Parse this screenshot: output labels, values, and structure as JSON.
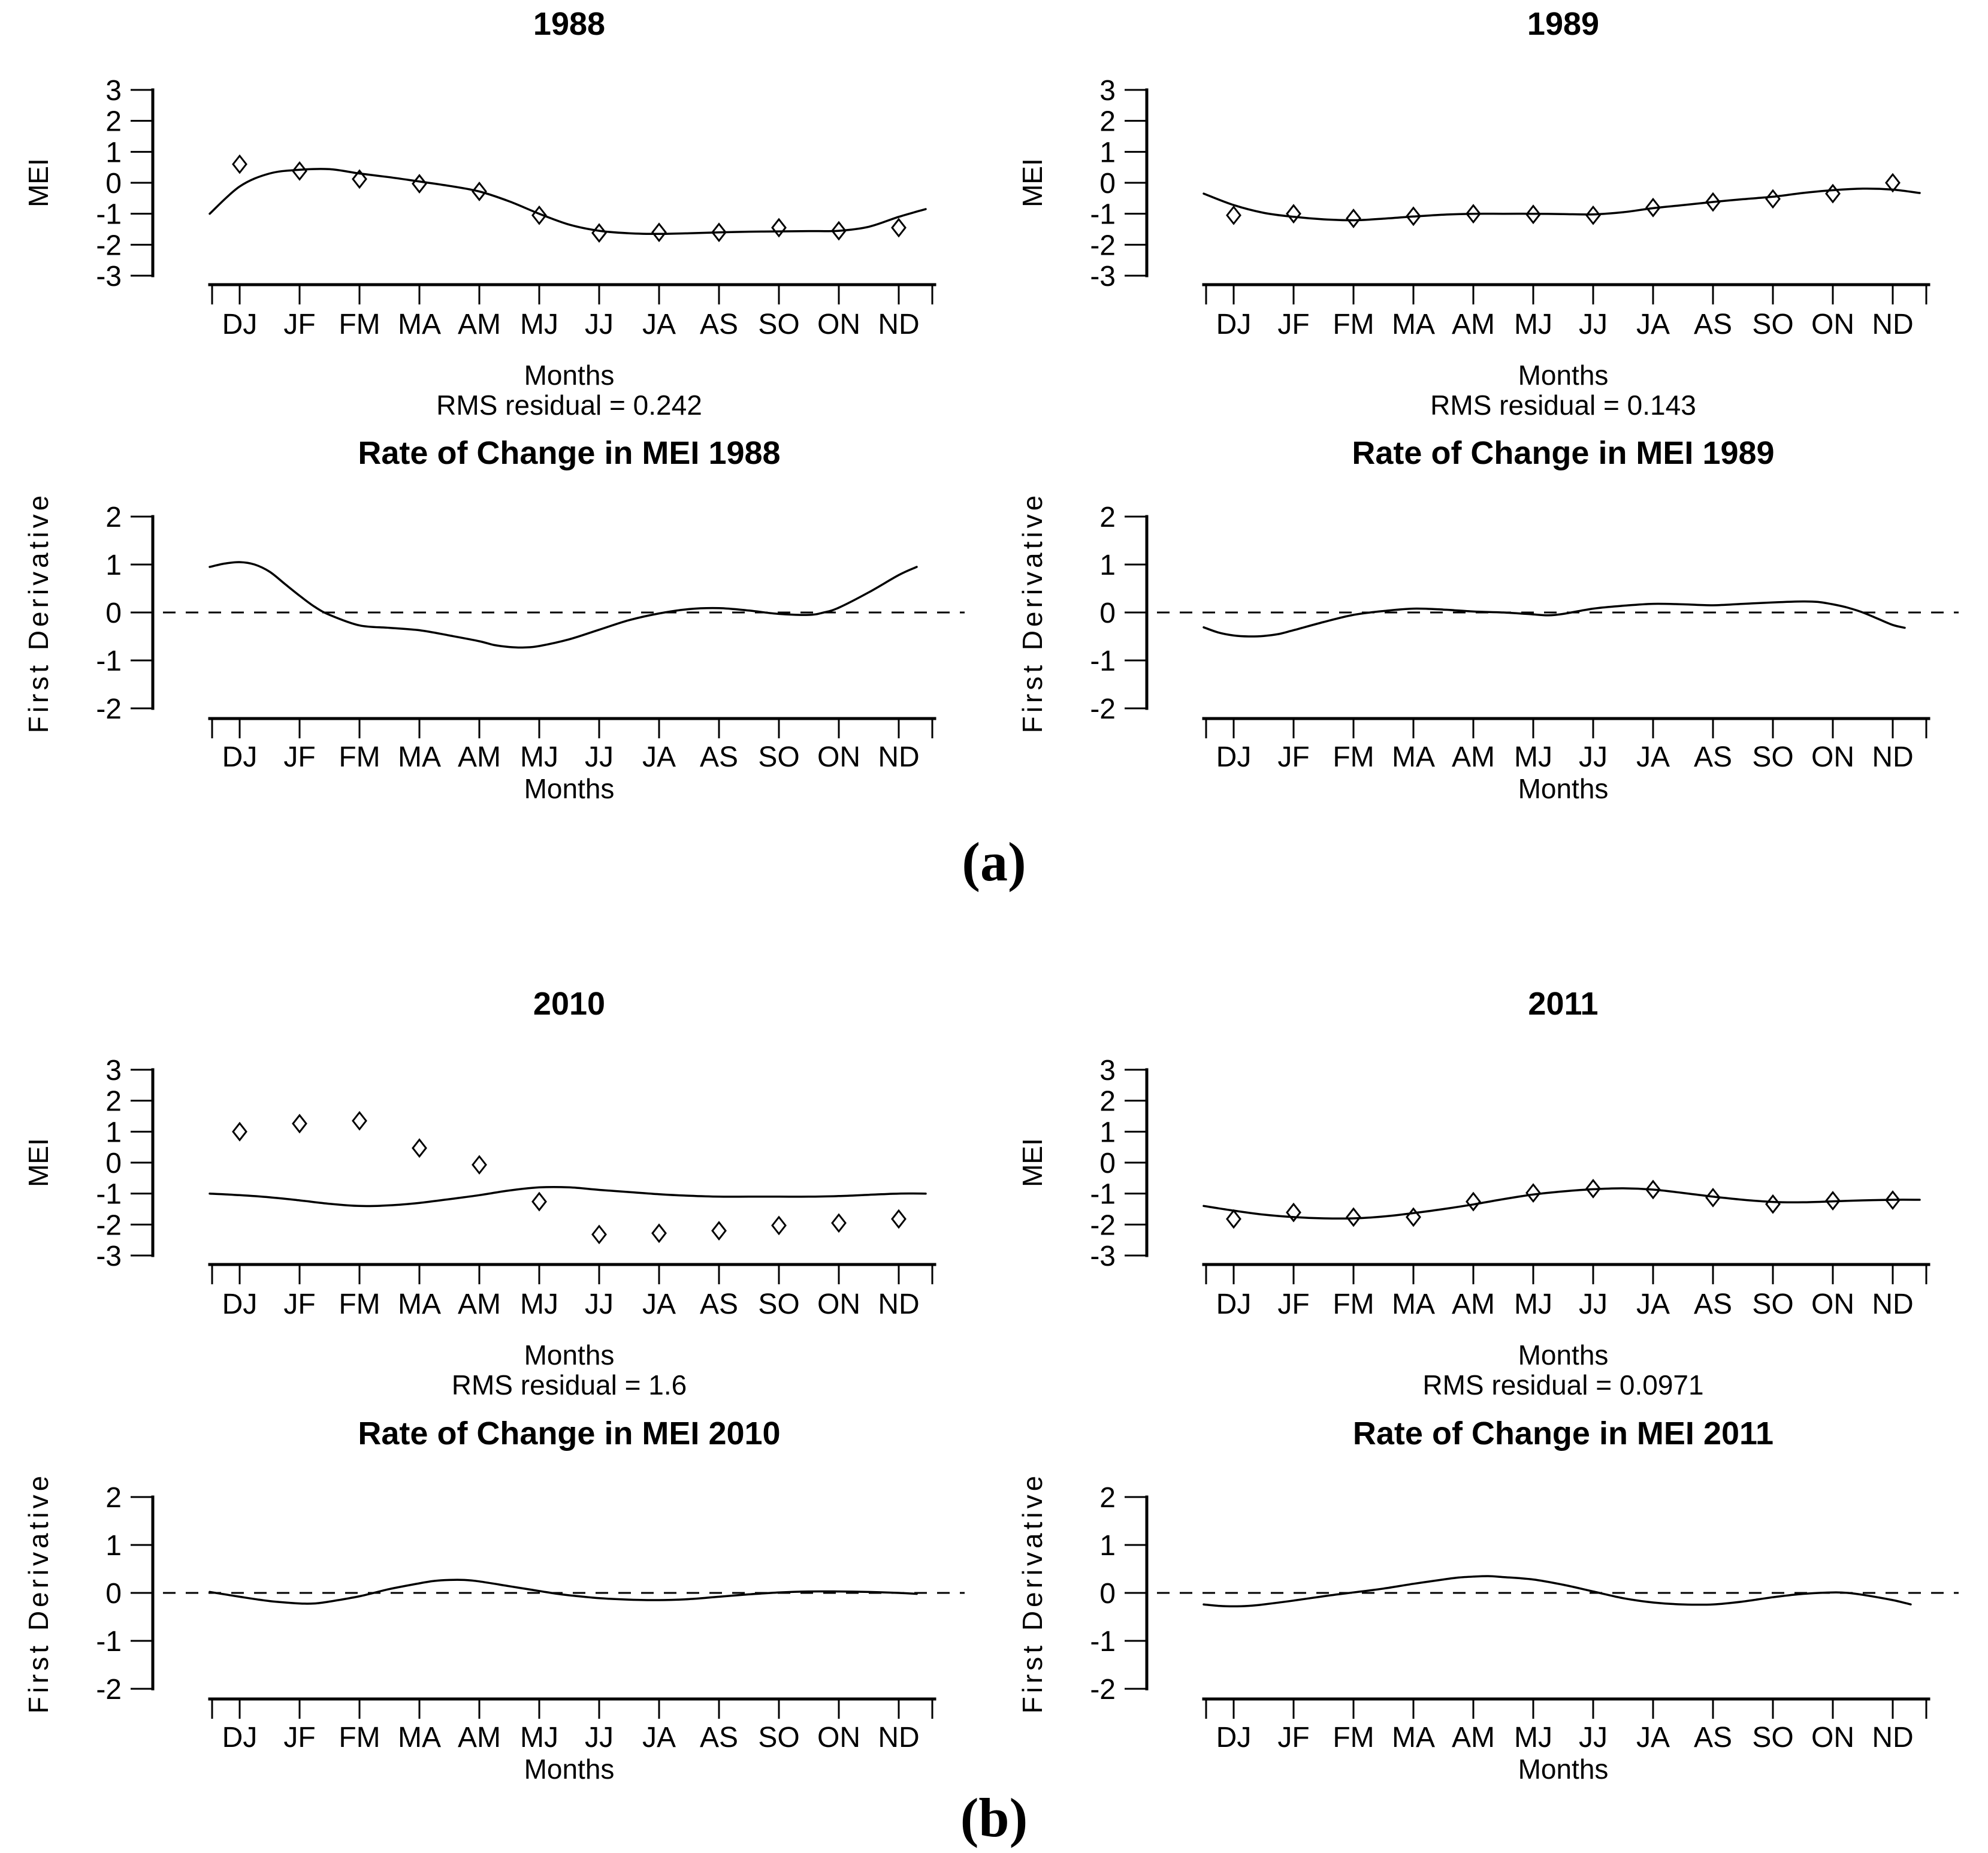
{
  "figure": {
    "panel_a_label": "(a)",
    "panel_b_label": "(b)"
  },
  "chart_data": [
    {
      "id": "mei-1988",
      "type": "scatter",
      "panel": "a",
      "title": "1988",
      "xlabel": "Months",
      "ylabel": "MEI",
      "subtitle": "RMS residual = 0.242",
      "ylim": [
        -3,
        3
      ],
      "yticks": [
        3,
        2,
        1,
        0,
        -1,
        -2,
        -3
      ],
      "categories": [
        "DJ",
        "JF",
        "FM",
        "MA",
        "AM",
        "MJ",
        "JJ",
        "JA",
        "AS",
        "SO",
        "ON",
        "ND"
      ],
      "points": [
        0.6,
        0.38,
        0.12,
        -0.03,
        -0.28,
        -1.05,
        -1.62,
        -1.6,
        -1.6,
        -1.45,
        -1.55,
        -1.45
      ],
      "curve": [
        [
          0.5,
          -1.0
        ],
        [
          1,
          -0.12
        ],
        [
          1.5,
          0.3
        ],
        [
          2,
          0.42
        ],
        [
          2.5,
          0.44
        ],
        [
          3,
          0.3
        ],
        [
          3.5,
          0.18
        ],
        [
          4,
          0.04
        ],
        [
          4.5,
          -0.1
        ],
        [
          5,
          -0.28
        ],
        [
          5.5,
          -0.6
        ],
        [
          6,
          -1.0
        ],
        [
          6.5,
          -1.35
        ],
        [
          7,
          -1.55
        ],
        [
          7.5,
          -1.63
        ],
        [
          8,
          -1.65
        ],
        [
          8.5,
          -1.63
        ],
        [
          9,
          -1.6
        ],
        [
          9.5,
          -1.58
        ],
        [
          10,
          -1.57
        ],
        [
          10.5,
          -1.56
        ],
        [
          11,
          -1.55
        ],
        [
          11.5,
          -1.42
        ],
        [
          12,
          -1.1
        ],
        [
          12.45,
          -0.85
        ]
      ],
      "zero_line": false
    },
    {
      "id": "mei-1989",
      "type": "scatter",
      "panel": "a",
      "title": "1989",
      "xlabel": "Months",
      "ylabel": "MEI",
      "subtitle": "RMS residual = 0.143",
      "ylim": [
        -3,
        3
      ],
      "yticks": [
        3,
        2,
        1,
        0,
        -1,
        -2,
        -3
      ],
      "categories": [
        "DJ",
        "JF",
        "FM",
        "MA",
        "AM",
        "MJ",
        "JJ",
        "JA",
        "AS",
        "SO",
        "ON",
        "ND"
      ],
      "points": [
        -1.05,
        -1.0,
        -1.15,
        -1.08,
        -1.0,
        -1.02,
        -1.05,
        -0.8,
        -0.62,
        -0.52,
        -0.35,
        0.0
      ],
      "curve": [
        [
          0.5,
          -0.35
        ],
        [
          1,
          -0.72
        ],
        [
          1.5,
          -0.97
        ],
        [
          2,
          -1.1
        ],
        [
          2.5,
          -1.18
        ],
        [
          3,
          -1.21
        ],
        [
          3.5,
          -1.16
        ],
        [
          4,
          -1.09
        ],
        [
          4.5,
          -1.03
        ],
        [
          5,
          -1.0
        ],
        [
          5.5,
          -1.0
        ],
        [
          6,
          -1.0
        ],
        [
          6.5,
          -1.01
        ],
        [
          7,
          -1.02
        ],
        [
          7.5,
          -0.95
        ],
        [
          8,
          -0.82
        ],
        [
          8.5,
          -0.72
        ],
        [
          9,
          -0.62
        ],
        [
          9.5,
          -0.53
        ],
        [
          10,
          -0.45
        ],
        [
          10.5,
          -0.33
        ],
        [
          11,
          -0.24
        ],
        [
          11.5,
          -0.19
        ],
        [
          12,
          -0.22
        ],
        [
          12.45,
          -0.33
        ]
      ],
      "zero_line": false
    },
    {
      "id": "roc-1988",
      "type": "line",
      "panel": "a",
      "title": "Rate of Change in MEI 1988",
      "xlabel": "Months",
      "ylabel": "First Derivative",
      "ylim": [
        -2,
        2
      ],
      "yticks": [
        2,
        1,
        0,
        -1,
        -2
      ],
      "categories": [
        "DJ",
        "JF",
        "FM",
        "MA",
        "AM",
        "MJ",
        "JJ",
        "JA",
        "AS",
        "SO",
        "ON",
        "ND"
      ],
      "curve": [
        [
          0.5,
          0.95
        ],
        [
          0.75,
          1.02
        ],
        [
          1,
          1.05
        ],
        [
          1.25,
          1.0
        ],
        [
          1.5,
          0.85
        ],
        [
          1.75,
          0.6
        ],
        [
          2,
          0.35
        ],
        [
          2.25,
          0.12
        ],
        [
          2.5,
          -0.05
        ],
        [
          3,
          -0.27
        ],
        [
          3.5,
          -0.32
        ],
        [
          4,
          -0.37
        ],
        [
          4.5,
          -0.48
        ],
        [
          5,
          -0.6
        ],
        [
          5.25,
          -0.68
        ],
        [
          5.5,
          -0.72
        ],
        [
          5.75,
          -0.73
        ],
        [
          6,
          -0.7
        ],
        [
          6.5,
          -0.56
        ],
        [
          7,
          -0.36
        ],
        [
          7.5,
          -0.16
        ],
        [
          8,
          -0.02
        ],
        [
          8.5,
          0.07
        ],
        [
          9,
          0.09
        ],
        [
          9.5,
          0.04
        ],
        [
          10,
          -0.03
        ],
        [
          10.5,
          -0.05
        ],
        [
          10.75,
          0.0
        ],
        [
          11,
          0.1
        ],
        [
          11.5,
          0.42
        ],
        [
          12,
          0.78
        ],
        [
          12.3,
          0.95
        ]
      ],
      "zero_line": true
    },
    {
      "id": "roc-1989",
      "type": "line",
      "panel": "a",
      "title": "Rate of Change in MEI 1989",
      "xlabel": "Months",
      "ylabel": "First Derivative",
      "ylim": [
        -2,
        2
      ],
      "yticks": [
        2,
        1,
        0,
        -1,
        -2
      ],
      "categories": [
        "DJ",
        "JF",
        "FM",
        "MA",
        "AM",
        "MJ",
        "JJ",
        "JA",
        "AS",
        "SO",
        "ON",
        "ND"
      ],
      "curve": [
        [
          0.5,
          -0.31
        ],
        [
          0.75,
          -0.42
        ],
        [
          1,
          -0.48
        ],
        [
          1.25,
          -0.5
        ],
        [
          1.5,
          -0.49
        ],
        [
          1.75,
          -0.45
        ],
        [
          2,
          -0.37
        ],
        [
          2.5,
          -0.2
        ],
        [
          3,
          -0.05
        ],
        [
          3.5,
          0.03
        ],
        [
          4,
          0.08
        ],
        [
          4.5,
          0.06
        ],
        [
          5,
          0.02
        ],
        [
          5.5,
          0.0
        ],
        [
          6,
          -0.04
        ],
        [
          6.25,
          -0.06
        ],
        [
          6.5,
          -0.03
        ],
        [
          7,
          0.08
        ],
        [
          7.5,
          0.14
        ],
        [
          8,
          0.18
        ],
        [
          8.5,
          0.17
        ],
        [
          9,
          0.15
        ],
        [
          9.5,
          0.18
        ],
        [
          10,
          0.21
        ],
        [
          10.5,
          0.23
        ],
        [
          10.75,
          0.22
        ],
        [
          11,
          0.17
        ],
        [
          11.25,
          0.1
        ],
        [
          11.5,
          0.0
        ],
        [
          11.75,
          -0.13
        ],
        [
          12,
          -0.26
        ],
        [
          12.2,
          -0.32
        ]
      ],
      "zero_line": true
    },
    {
      "id": "mei-2010",
      "type": "scatter",
      "panel": "b",
      "title": "2010",
      "xlabel": "Months",
      "ylabel": "MEI",
      "subtitle": "RMS residual = 1.6",
      "ylim": [
        -3,
        3
      ],
      "yticks": [
        3,
        2,
        1,
        0,
        -1,
        -2,
        -3
      ],
      "categories": [
        "DJ",
        "JF",
        "FM",
        "MA",
        "AM",
        "MJ",
        "JJ",
        "JA",
        "AS",
        "SO",
        "ON",
        "ND"
      ],
      "points": [
        1.0,
        1.26,
        1.35,
        0.47,
        -0.07,
        -1.26,
        -2.32,
        -2.28,
        -2.2,
        -2.03,
        -1.95,
        -1.82
      ],
      "curve": [
        [
          0.5,
          -1.0
        ],
        [
          1,
          -1.05
        ],
        [
          1.5,
          -1.12
        ],
        [
          2,
          -1.22
        ],
        [
          2.5,
          -1.33
        ],
        [
          3,
          -1.4
        ],
        [
          3.5,
          -1.38
        ],
        [
          4,
          -1.3
        ],
        [
          4.5,
          -1.18
        ],
        [
          5,
          -1.05
        ],
        [
          5.5,
          -0.9
        ],
        [
          6,
          -0.8
        ],
        [
          6.5,
          -0.8
        ],
        [
          7,
          -0.88
        ],
        [
          7.5,
          -0.95
        ],
        [
          8,
          -1.02
        ],
        [
          8.5,
          -1.07
        ],
        [
          9,
          -1.1
        ],
        [
          9.5,
          -1.1
        ],
        [
          10,
          -1.1
        ],
        [
          10.5,
          -1.1
        ],
        [
          11,
          -1.08
        ],
        [
          11.5,
          -1.04
        ],
        [
          12,
          -1.0
        ],
        [
          12.45,
          -1.0
        ]
      ],
      "zero_line": false
    },
    {
      "id": "mei-2011",
      "type": "scatter",
      "panel": "b",
      "title": "2011",
      "xlabel": "Months",
      "ylabel": "MEI",
      "subtitle": "RMS residual = 0.0971",
      "ylim": [
        -3,
        3
      ],
      "yticks": [
        3,
        2,
        1,
        0,
        -1,
        -2,
        -3
      ],
      "categories": [
        "DJ",
        "JF",
        "FM",
        "MA",
        "AM",
        "MJ",
        "JJ",
        "JA",
        "AS",
        "SO",
        "ON",
        "ND"
      ],
      "points": [
        -1.82,
        -1.61,
        -1.76,
        -1.76,
        -1.26,
        -0.98,
        -0.84,
        -0.87,
        -1.13,
        -1.34,
        -1.23,
        -1.21
      ],
      "curve": [
        [
          0.5,
          -1.4
        ],
        [
          1,
          -1.55
        ],
        [
          1.5,
          -1.68
        ],
        [
          2,
          -1.76
        ],
        [
          2.5,
          -1.8
        ],
        [
          3,
          -1.8
        ],
        [
          3.5,
          -1.74
        ],
        [
          4,
          -1.63
        ],
        [
          4.5,
          -1.5
        ],
        [
          5,
          -1.35
        ],
        [
          5.5,
          -1.18
        ],
        [
          6,
          -1.03
        ],
        [
          6.5,
          -0.93
        ],
        [
          7,
          -0.86
        ],
        [
          7.5,
          -0.83
        ],
        [
          8,
          -0.87
        ],
        [
          8.5,
          -0.98
        ],
        [
          9,
          -1.1
        ],
        [
          9.5,
          -1.2
        ],
        [
          10,
          -1.27
        ],
        [
          10.5,
          -1.28
        ],
        [
          11,
          -1.25
        ],
        [
          11.5,
          -1.22
        ],
        [
          12,
          -1.2
        ],
        [
          12.45,
          -1.2
        ]
      ],
      "zero_line": false
    },
    {
      "id": "roc-2010",
      "type": "line",
      "panel": "b",
      "title": "Rate of Change in MEI 2010",
      "xlabel": "Months",
      "ylabel": "First Derivative",
      "ylim": [
        -2,
        2
      ],
      "yticks": [
        2,
        1,
        0,
        -1,
        -2
      ],
      "categories": [
        "DJ",
        "JF",
        "FM",
        "MA",
        "AM",
        "MJ",
        "JJ",
        "JA",
        "AS",
        "SO",
        "ON",
        "ND"
      ],
      "curve": [
        [
          0.5,
          0.02
        ],
        [
          0.75,
          -0.03
        ],
        [
          1,
          -0.08
        ],
        [
          1.5,
          -0.17
        ],
        [
          2,
          -0.22
        ],
        [
          2.25,
          -0.22
        ],
        [
          2.5,
          -0.18
        ],
        [
          3,
          -0.07
        ],
        [
          3.5,
          0.08
        ],
        [
          4,
          0.2
        ],
        [
          4.25,
          0.25
        ],
        [
          4.5,
          0.27
        ],
        [
          4.75,
          0.27
        ],
        [
          5,
          0.24
        ],
        [
          5.5,
          0.14
        ],
        [
          6,
          0.04
        ],
        [
          6.25,
          -0.01
        ],
        [
          6.5,
          -0.05
        ],
        [
          7,
          -0.11
        ],
        [
          7.5,
          -0.14
        ],
        [
          8,
          -0.15
        ],
        [
          8.5,
          -0.13
        ],
        [
          9,
          -0.08
        ],
        [
          9.5,
          -0.03
        ],
        [
          10,
          0.01
        ],
        [
          10.5,
          0.03
        ],
        [
          11,
          0.03
        ],
        [
          11.5,
          0.02
        ],
        [
          12,
          0.0
        ],
        [
          12.3,
          -0.02
        ]
      ],
      "zero_line": true
    },
    {
      "id": "roc-2011",
      "type": "line",
      "panel": "b",
      "title": "Rate of Change in MEI 2011",
      "xlabel": "Months",
      "ylabel": "First Derivative",
      "ylim": [
        -2,
        2
      ],
      "yticks": [
        2,
        1,
        0,
        -1,
        -2
      ],
      "categories": [
        "DJ",
        "JF",
        "FM",
        "MA",
        "AM",
        "MJ",
        "JJ",
        "JA",
        "AS",
        "SO",
        "ON",
        "ND"
      ],
      "curve": [
        [
          0.5,
          -0.24
        ],
        [
          0.75,
          -0.27
        ],
        [
          1,
          -0.28
        ],
        [
          1.25,
          -0.27
        ],
        [
          1.5,
          -0.24
        ],
        [
          2,
          -0.16
        ],
        [
          2.5,
          -0.07
        ],
        [
          3,
          0.01
        ],
        [
          3.5,
          0.09
        ],
        [
          4,
          0.19
        ],
        [
          4.5,
          0.28
        ],
        [
          4.75,
          0.32
        ],
        [
          5,
          0.34
        ],
        [
          5.25,
          0.35
        ],
        [
          5.5,
          0.33
        ],
        [
          6,
          0.28
        ],
        [
          6.5,
          0.17
        ],
        [
          7,
          0.03
        ],
        [
          7.5,
          -0.11
        ],
        [
          8,
          -0.2
        ],
        [
          8.5,
          -0.24
        ],
        [
          9,
          -0.24
        ],
        [
          9.5,
          -0.18
        ],
        [
          10,
          -0.09
        ],
        [
          10.5,
          -0.02
        ],
        [
          11,
          0.01
        ],
        [
          11.25,
          0.0
        ],
        [
          11.5,
          -0.04
        ],
        [
          12,
          -0.15
        ],
        [
          12.3,
          -0.24
        ]
      ],
      "zero_line": true
    }
  ]
}
